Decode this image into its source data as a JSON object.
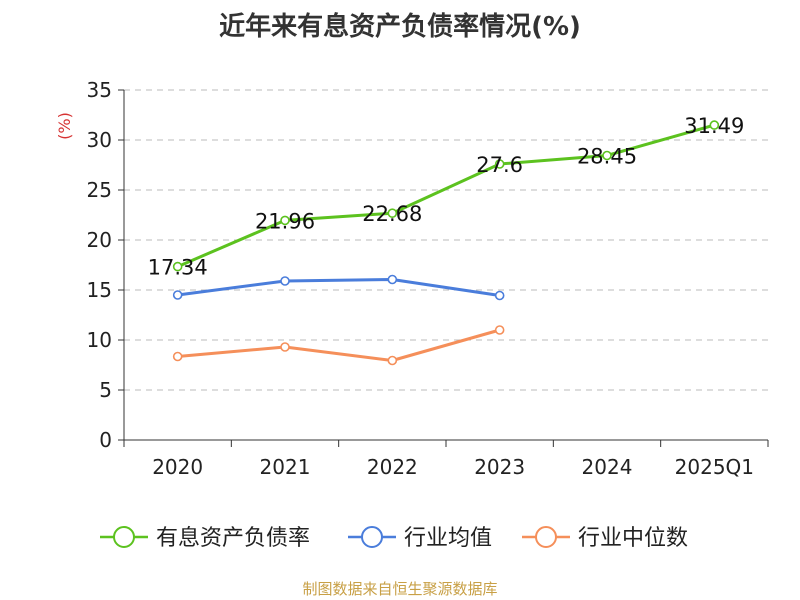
{
  "chart_data": {
    "type": "line",
    "title": "近年来有息资产负债率情况(%)",
    "ylabel": "(%)",
    "xlabel": "",
    "categories": [
      "2020",
      "2021",
      "2022",
      "2023",
      "2024",
      "2025Q1"
    ],
    "yticks": [
      "0",
      "5",
      "10",
      "15",
      "20",
      "25",
      "30",
      "35"
    ],
    "ylim": [
      0,
      35
    ],
    "grid": "horizontal-dashed",
    "legend_position": "bottom",
    "series": [
      {
        "name": "有息资产负债率",
        "color": "#5cc21f",
        "values": [
          17.34,
          21.96,
          22.68,
          27.6,
          28.45,
          31.49
        ],
        "labels": [
          "17.34",
          "21.96",
          "22.68",
          "27.6",
          "28.45",
          "31.49"
        ]
      },
      {
        "name": "行业均值",
        "color": "#4a7ddb",
        "values": [
          14.5,
          15.9,
          16.05,
          14.45,
          null,
          null
        ]
      },
      {
        "name": "行业中位数",
        "color": "#f58f5a",
        "values": [
          8.35,
          9.3,
          7.95,
          11.0,
          null,
          null
        ]
      }
    ],
    "source": "制图数据来自恒生聚源数据库"
  }
}
